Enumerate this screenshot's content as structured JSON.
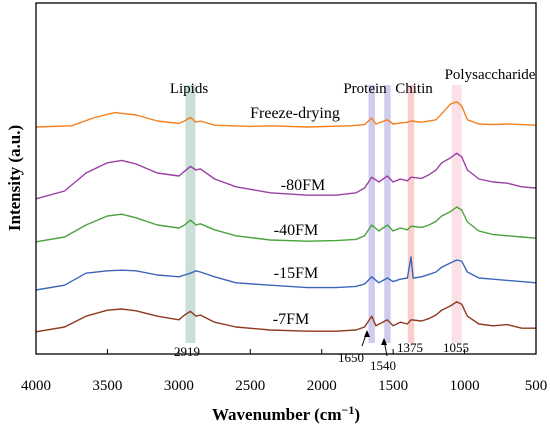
{
  "chart_data": {
    "type": "line",
    "xlabel": "Wavenumber (cm",
    "xlabel_sup": "−1",
    "xlabel_tail": ")",
    "ylabel": "Intensity (a.u.)",
    "xlim": [
      4000,
      500
    ],
    "x_reversed": true,
    "x_ticks": [
      4000,
      3500,
      3000,
      2500,
      2000,
      1500,
      1000,
      500
    ],
    "y_ticks_shown": false,
    "grid": false,
    "legend": "none",
    "series": [
      {
        "name": "Freeze-drying",
        "color": "#f47f1f",
        "offset": 4,
        "points": [
          [
            4000,
            0
          ],
          [
            3750,
            0.02
          ],
          [
            3600,
            0.15
          ],
          [
            3450,
            0.24
          ],
          [
            3300,
            0.2
          ],
          [
            3150,
            0.1
          ],
          [
            3000,
            0.06
          ],
          [
            2960,
            0.1
          ],
          [
            2919,
            0.16
          ],
          [
            2880,
            0.08
          ],
          [
            2850,
            0.1
          ],
          [
            2750,
            0.03
          ],
          [
            2500,
            0.01
          ],
          [
            2360,
            0.02
          ],
          [
            2100,
            0.0
          ],
          [
            1800,
            0.02
          ],
          [
            1700,
            0.04
          ],
          [
            1650,
            0.15
          ],
          [
            1620,
            0.05
          ],
          [
            1540,
            0.12
          ],
          [
            1500,
            0.05
          ],
          [
            1400,
            0.08
          ],
          [
            1375,
            0.1
          ],
          [
            1300,
            0.08
          ],
          [
            1200,
            0.12
          ],
          [
            1160,
            0.22
          ],
          [
            1100,
            0.38
          ],
          [
            1055,
            0.42
          ],
          [
            1020,
            0.35
          ],
          [
            980,
            0.12
          ],
          [
            900,
            0.05
          ],
          [
            800,
            0.04
          ],
          [
            700,
            0.05
          ],
          [
            600,
            0.04
          ],
          [
            500,
            0.03
          ]
        ]
      },
      {
        "name": "-80FM",
        "color": "#9b3fa7",
        "offset": 3,
        "points": [
          [
            4000,
            0.02
          ],
          [
            3800,
            0.15
          ],
          [
            3650,
            0.45
          ],
          [
            3500,
            0.62
          ],
          [
            3400,
            0.66
          ],
          [
            3300,
            0.6
          ],
          [
            3150,
            0.45
          ],
          [
            3000,
            0.4
          ],
          [
            2960,
            0.48
          ],
          [
            2919,
            0.56
          ],
          [
            2880,
            0.5
          ],
          [
            2850,
            0.52
          ],
          [
            2750,
            0.35
          ],
          [
            2600,
            0.22
          ],
          [
            2360,
            0.12
          ],
          [
            2100,
            0.08
          ],
          [
            1900,
            0.08
          ],
          [
            1760,
            0.12
          ],
          [
            1700,
            0.2
          ],
          [
            1650,
            0.38
          ],
          [
            1600,
            0.3
          ],
          [
            1540,
            0.4
          ],
          [
            1500,
            0.3
          ],
          [
            1450,
            0.35
          ],
          [
            1400,
            0.32
          ],
          [
            1375,
            0.38
          ],
          [
            1300,
            0.36
          ],
          [
            1250,
            0.42
          ],
          [
            1200,
            0.5
          ],
          [
            1160,
            0.62
          ],
          [
            1100,
            0.7
          ],
          [
            1055,
            0.78
          ],
          [
            1020,
            0.72
          ],
          [
            980,
            0.5
          ],
          [
            900,
            0.35
          ],
          [
            800,
            0.3
          ],
          [
            700,
            0.28
          ],
          [
            600,
            0.22
          ],
          [
            500,
            0.2
          ]
        ]
      },
      {
        "name": "-40FM",
        "color": "#4aa33d",
        "offset": 2,
        "points": [
          [
            4000,
            0.02
          ],
          [
            3800,
            0.1
          ],
          [
            3650,
            0.3
          ],
          [
            3500,
            0.45
          ],
          [
            3400,
            0.48
          ],
          [
            3300,
            0.42
          ],
          [
            3150,
            0.3
          ],
          [
            3000,
            0.25
          ],
          [
            2960,
            0.3
          ],
          [
            2919,
            0.38
          ],
          [
            2880,
            0.3
          ],
          [
            2850,
            0.32
          ],
          [
            2750,
            0.22
          ],
          [
            2600,
            0.12
          ],
          [
            2360,
            0.05
          ],
          [
            2100,
            0.03
          ],
          [
            1900,
            0.04
          ],
          [
            1760,
            0.06
          ],
          [
            1700,
            0.12
          ],
          [
            1650,
            0.3
          ],
          [
            1600,
            0.2
          ],
          [
            1540,
            0.3
          ],
          [
            1500,
            0.2
          ],
          [
            1450,
            0.25
          ],
          [
            1400,
            0.22
          ],
          [
            1375,
            0.28
          ],
          [
            1300,
            0.26
          ],
          [
            1250,
            0.3
          ],
          [
            1200,
            0.36
          ],
          [
            1160,
            0.45
          ],
          [
            1100,
            0.52
          ],
          [
            1055,
            0.6
          ],
          [
            1020,
            0.55
          ],
          [
            980,
            0.35
          ],
          [
            900,
            0.2
          ],
          [
            800,
            0.14
          ],
          [
            700,
            0.12
          ],
          [
            600,
            0.1
          ],
          [
            500,
            0.08
          ]
        ]
      },
      {
        "name": "-15FM",
        "color": "#3b66b8",
        "offset": 1,
        "points": [
          [
            4000,
            0.0
          ],
          [
            3800,
            0.08
          ],
          [
            3650,
            0.28
          ],
          [
            3500,
            0.32
          ],
          [
            3400,
            0.33
          ],
          [
            3300,
            0.32
          ],
          [
            3150,
            0.25
          ],
          [
            3000,
            0.22
          ],
          [
            2960,
            0.25
          ],
          [
            2919,
            0.28
          ],
          [
            2880,
            0.32
          ],
          [
            2850,
            0.3
          ],
          [
            2750,
            0.22
          ],
          [
            2600,
            0.12
          ],
          [
            2360,
            0.08
          ],
          [
            2100,
            0.04
          ],
          [
            1900,
            0.04
          ],
          [
            1760,
            0.06
          ],
          [
            1700,
            0.1
          ],
          [
            1650,
            0.22
          ],
          [
            1600,
            0.12
          ],
          [
            1540,
            0.2
          ],
          [
            1500,
            0.14
          ],
          [
            1450,
            0.18
          ],
          [
            1400,
            0.2
          ],
          [
            1375,
            0.55
          ],
          [
            1360,
            0.2
          ],
          [
            1300,
            0.22
          ],
          [
            1250,
            0.26
          ],
          [
            1200,
            0.3
          ],
          [
            1160,
            0.38
          ],
          [
            1100,
            0.45
          ],
          [
            1055,
            0.5
          ],
          [
            1020,
            0.48
          ],
          [
            980,
            0.3
          ],
          [
            900,
            0.2
          ],
          [
            800,
            0.18
          ],
          [
            700,
            0.16
          ],
          [
            600,
            0.14
          ],
          [
            500,
            0.12
          ]
        ]
      },
      {
        "name": "-7FM",
        "color": "#8e3a1e",
        "offset": 0,
        "points": [
          [
            4000,
            0.02
          ],
          [
            3800,
            0.1
          ],
          [
            3650,
            0.28
          ],
          [
            3500,
            0.38
          ],
          [
            3400,
            0.4
          ],
          [
            3300,
            0.37
          ],
          [
            3150,
            0.28
          ],
          [
            3000,
            0.22
          ],
          [
            2960,
            0.3
          ],
          [
            2919,
            0.36
          ],
          [
            2880,
            0.28
          ],
          [
            2850,
            0.3
          ],
          [
            2750,
            0.18
          ],
          [
            2600,
            0.1
          ],
          [
            2360,
            0.05
          ],
          [
            2100,
            0.03
          ],
          [
            1900,
            0.03
          ],
          [
            1760,
            0.05
          ],
          [
            1700,
            0.1
          ],
          [
            1650,
            0.28
          ],
          [
            1620,
            0.12
          ],
          [
            1540,
            0.22
          ],
          [
            1500,
            0.12
          ],
          [
            1450,
            0.18
          ],
          [
            1400,
            0.15
          ],
          [
            1375,
            0.22
          ],
          [
            1300,
            0.2
          ],
          [
            1250,
            0.24
          ],
          [
            1200,
            0.3
          ],
          [
            1160,
            0.38
          ],
          [
            1100,
            0.45
          ],
          [
            1055,
            0.52
          ],
          [
            1020,
            0.48
          ],
          [
            980,
            0.28
          ],
          [
            900,
            0.15
          ],
          [
            800,
            0.12
          ],
          [
            700,
            0.14
          ],
          [
            600,
            0.08
          ],
          [
            500,
            0.08
          ]
        ]
      }
    ],
    "bands": [
      {
        "label": "Lipids",
        "center": 2919,
        "width": 70,
        "color": "#9ec4b8"
      },
      {
        "label": "Protein",
        "center": 1650,
        "width": 45,
        "color": "#a7a2e0"
      },
      {
        "label": "",
        "center": 1540,
        "width": 45,
        "color": "#a7a2e0"
      },
      {
        "label": "Chitin",
        "center": 1375,
        "width": 45,
        "color": "#f4a6a0"
      },
      {
        "label": "Polysaccharide",
        "center": 1055,
        "width": 70,
        "color": "#f6c6d4"
      }
    ],
    "peak_labels": [
      "2919",
      "1650",
      "1540",
      "1375",
      "1055"
    ]
  }
}
